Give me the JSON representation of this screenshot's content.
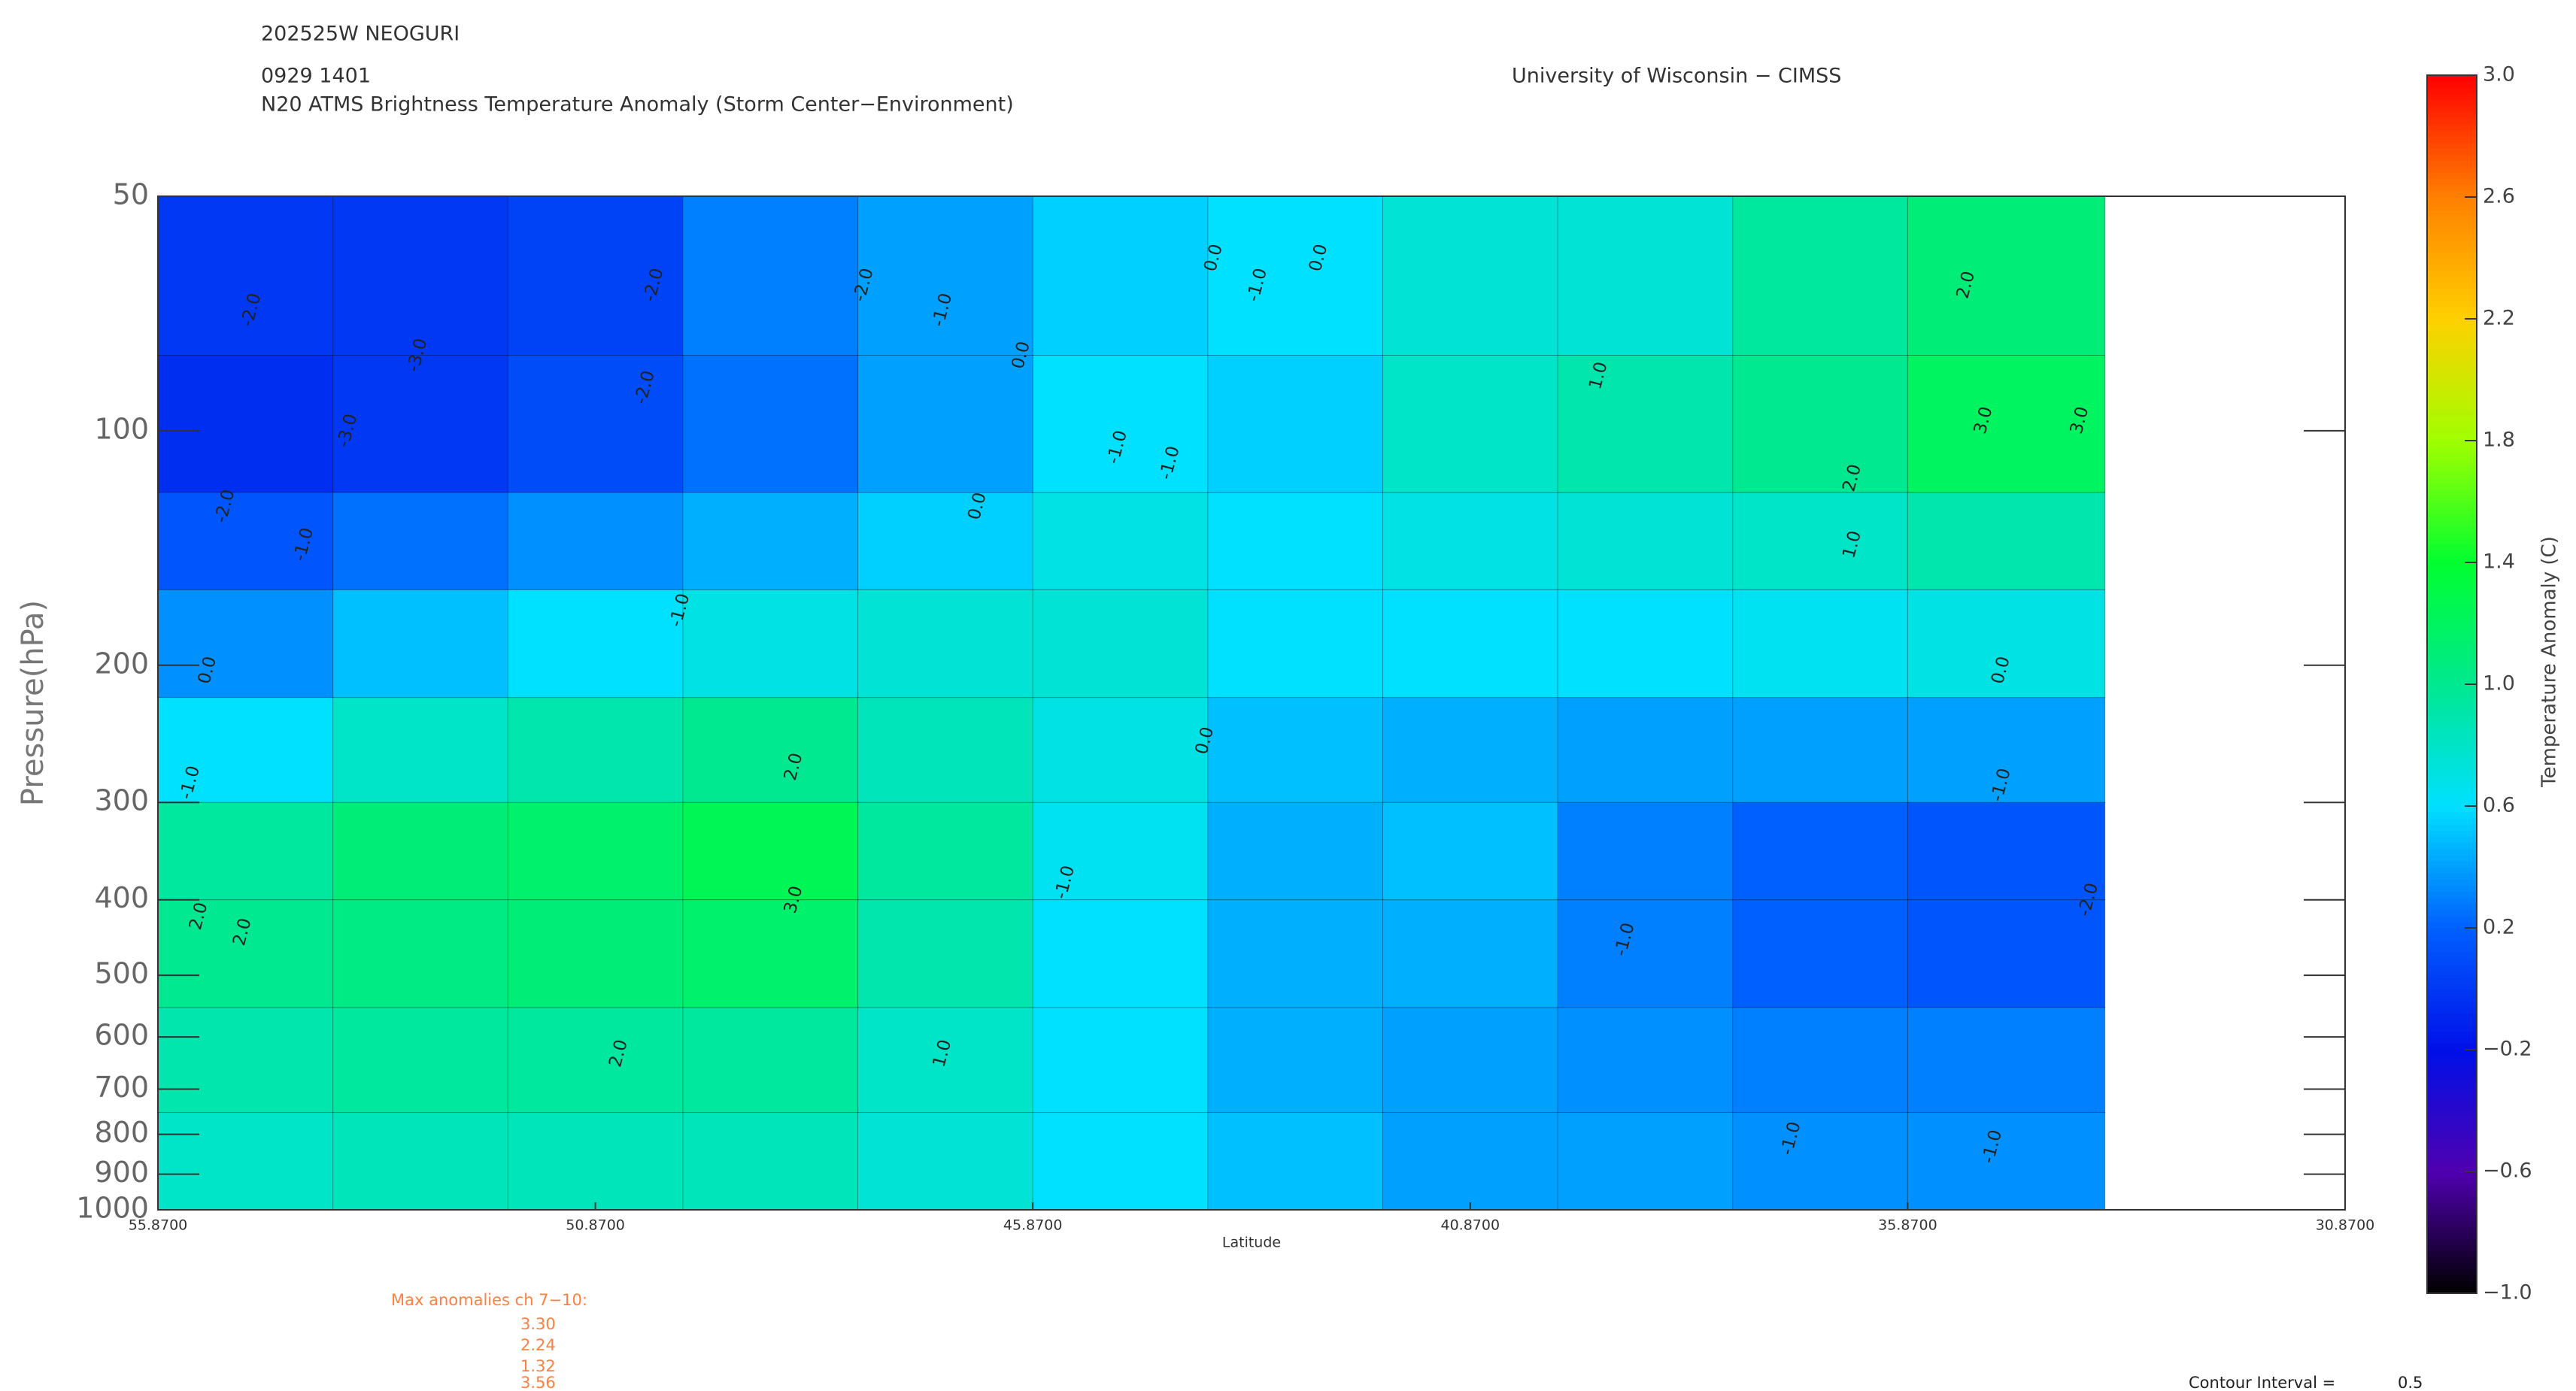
{
  "header": {
    "storm": "202525W NEOGURI",
    "time": "0929 1401",
    "subtitle": "N20 ATMS Brightness Temperature Anomaly (Storm Center−Environment)",
    "source": "University of Wisconsin − CIMSS"
  },
  "chart_data": {
    "type": "contour",
    "xlabel": "Latitude",
    "ylabel": "Pressure(hPa)",
    "xlim": [
      55.87,
      30.87
    ],
    "xticks": [
      {
        "value": 55.87,
        "label": "55.8700"
      },
      {
        "value": 50.87,
        "label": "50.8700"
      },
      {
        "value": 45.87,
        "label": "45.8700"
      },
      {
        "value": 40.87,
        "label": "40.8700"
      },
      {
        "value": 35.87,
        "label": "35.8700"
      },
      {
        "value": 30.87,
        "label": "30.8700"
      }
    ],
    "ylim": [
      50,
      1000
    ],
    "log_y": true,
    "yticks": [
      50,
      100,
      200,
      300,
      400,
      500,
      600,
      700,
      800,
      900,
      1000
    ],
    "x_edges": [
      55.87,
      53.87,
      51.87,
      49.87,
      47.87,
      45.87,
      43.87,
      41.87,
      39.87,
      37.87,
      35.87,
      33.62
    ],
    "y_edges": [
      50,
      80,
      120,
      160,
      220,
      300,
      400,
      550,
      750,
      1000
    ],
    "field": [
      [
        0.0,
        0.0,
        0.05,
        0.3,
        0.4,
        0.55,
        0.6,
        0.75,
        0.75,
        0.95,
        1.1
      ],
      [
        -0.05,
        0.0,
        0.1,
        0.25,
        0.4,
        0.6,
        0.55,
        0.8,
        0.9,
        1.0,
        1.2
      ],
      [
        0.15,
        0.25,
        0.35,
        0.45,
        0.55,
        0.7,
        0.6,
        0.7,
        0.75,
        0.8,
        0.9
      ],
      [
        0.35,
        0.5,
        0.6,
        0.7,
        0.75,
        0.75,
        0.6,
        0.6,
        0.6,
        0.65,
        0.7
      ],
      [
        0.6,
        0.8,
        0.9,
        1.0,
        0.85,
        0.7,
        0.5,
        0.45,
        0.4,
        0.4,
        0.4
      ],
      [
        0.95,
        1.1,
        1.15,
        1.25,
        0.95,
        0.65,
        0.45,
        0.5,
        0.3,
        0.2,
        0.15
      ],
      [
        1.0,
        1.05,
        1.1,
        1.15,
        0.9,
        0.6,
        0.45,
        0.45,
        0.3,
        0.2,
        0.15
      ],
      [
        0.9,
        0.95,
        0.95,
        0.95,
        0.8,
        0.6,
        0.45,
        0.4,
        0.35,
        0.3,
        0.3
      ],
      [
        0.8,
        0.85,
        0.85,
        0.85,
        0.75,
        0.6,
        0.5,
        0.4,
        0.4,
        0.35,
        0.35
      ]
    ],
    "contour_labels": [
      {
        "x": 54.8,
        "y": 70,
        "label": "-2.0"
      },
      {
        "x": 52.9,
        "y": 80,
        "label": "-3.0"
      },
      {
        "x": 50.2,
        "y": 65,
        "label": "-2.0"
      },
      {
        "x": 47.8,
        "y": 65,
        "label": "-2.0"
      },
      {
        "x": 46.9,
        "y": 70,
        "label": "-1.0"
      },
      {
        "x": 46.0,
        "y": 80,
        "label": "0.0"
      },
      {
        "x": 43.8,
        "y": 60,
        "label": "0.0"
      },
      {
        "x": 43.3,
        "y": 65,
        "label": "-1.0"
      },
      {
        "x": 42.6,
        "y": 60,
        "label": "0.0"
      },
      {
        "x": 44.9,
        "y": 105,
        "label": "-1.0"
      },
      {
        "x": 44.3,
        "y": 110,
        "label": "-1.0"
      },
      {
        "x": 35.2,
        "y": 65,
        "label": "2.0"
      },
      {
        "x": 39.4,
        "y": 85,
        "label": "1.0"
      },
      {
        "x": 35.0,
        "y": 97,
        "label": "3.0"
      },
      {
        "x": 33.9,
        "y": 97,
        "label": "3.0"
      },
      {
        "x": 36.5,
        "y": 115,
        "label": "2.0"
      },
      {
        "x": 36.5,
        "y": 140,
        "label": "1.0"
      },
      {
        "x": 34.8,
        "y": 203,
        "label": "0.0"
      },
      {
        "x": 34.8,
        "y": 285,
        "label": "-1.0"
      },
      {
        "x": 33.8,
        "y": 400,
        "label": "-2.0"
      },
      {
        "x": 39.1,
        "y": 450,
        "label": "-1.0"
      },
      {
        "x": 37.2,
        "y": 810,
        "label": "-1.0"
      },
      {
        "x": 34.9,
        "y": 830,
        "label": "-1.0"
      },
      {
        "x": 43.9,
        "y": 250,
        "label": "0.0"
      },
      {
        "x": 45.5,
        "y": 380,
        "label": "-1.0"
      },
      {
        "x": 46.9,
        "y": 630,
        "label": "1.0"
      },
      {
        "x": 50.6,
        "y": 630,
        "label": "2.0"
      },
      {
        "x": 48.6,
        "y": 400,
        "label": "3.0"
      },
      {
        "x": 48.6,
        "y": 270,
        "label": "2.0"
      },
      {
        "x": 55.4,
        "y": 420,
        "label": "2.0"
      },
      {
        "x": 54.9,
        "y": 440,
        "label": "2.0"
      },
      {
        "x": 55.5,
        "y": 283,
        "label": "-1.0"
      },
      {
        "x": 55.3,
        "y": 203,
        "label": "0.0"
      },
      {
        "x": 55.1,
        "y": 125,
        "label": "-2.0"
      },
      {
        "x": 54.2,
        "y": 140,
        "label": "-1.0"
      },
      {
        "x": 49.9,
        "y": 170,
        "label": "-1.0"
      },
      {
        "x": 46.5,
        "y": 125,
        "label": "0.0"
      },
      {
        "x": 50.3,
        "y": 88,
        "label": "-2.0"
      },
      {
        "x": 53.7,
        "y": 100,
        "label": "-3.0"
      }
    ],
    "colorbar": {
      "label": "Temperature Anomaly (C)",
      "clim": [
        -1,
        3
      ],
      "cticks": [
        {
          "value": -1,
          "label": "−1.0"
        },
        {
          "value": -0.6,
          "label": "−0.6"
        },
        {
          "value": -0.2,
          "label": "−0.2"
        },
        0.2,
        0.6,
        {
          "value": 1,
          "label": "1.0"
        },
        1.4,
        1.8,
        2.2,
        2.6,
        {
          "value": 3,
          "label": "3.0"
        }
      ],
      "colormap": [
        "#000000",
        "#5000b0",
        "#0010e8",
        "#0060ff",
        "#00e0ff",
        "#00e890",
        "#00ff30",
        "#a0ff00",
        "#ffd000",
        "#ff8000",
        "#ff0000"
      ]
    }
  },
  "notes": {
    "max_title": "Max anomalies ch 7−10:",
    "max_values": [
      "3.30",
      "2.24",
      "1.32",
      "3.56"
    ],
    "interval_label": "Contour Interval =",
    "interval": 0.5
  }
}
